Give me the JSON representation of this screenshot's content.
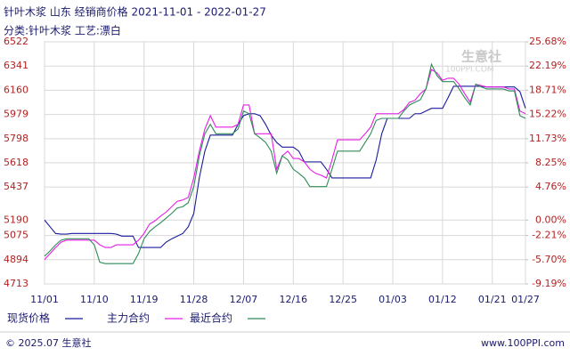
{
  "chart_data": {
    "type": "line",
    "title": "针叶木浆 山东 经销商价格 2021-11-01 - 2022-01-27",
    "subtitle": "分类:针叶木浆 工艺:漂白",
    "watermark": {
      "name": "生意社",
      "site": "100PPI.COM"
    },
    "footer_left": "© 2025.07 生意社",
    "footer_right": "www.100PPI.com",
    "grid": true,
    "legend": "bottom",
    "categories": [
      "11/01",
      null,
      null,
      null,
      null,
      null,
      null,
      null,
      null,
      "11/10",
      null,
      null,
      null,
      null,
      null,
      null,
      null,
      null,
      "11/19",
      null,
      null,
      null,
      null,
      null,
      null,
      null,
      null,
      "11/28",
      null,
      null,
      null,
      null,
      null,
      null,
      null,
      null,
      "12/07",
      null,
      null,
      null,
      null,
      null,
      null,
      null,
      null,
      "12/16",
      null,
      null,
      null,
      null,
      null,
      null,
      null,
      null,
      "12/25",
      null,
      null,
      null,
      null,
      null,
      null,
      null,
      null,
      "01/03",
      null,
      null,
      null,
      null,
      null,
      null,
      null,
      null,
      "01/12",
      null,
      null,
      null,
      null,
      null,
      null,
      null,
      null,
      "01/21",
      null,
      null,
      null,
      null,
      null,
      "01/27"
    ],
    "ylim": [
      4713,
      6522
    ],
    "yticks": [
      6522,
      6341,
      6160,
      5979,
      5798,
      5618,
      5437,
      5190,
      5075,
      4894,
      4713
    ],
    "y2lim": [
      -9.19,
      25.68
    ],
    "y2ticks": [
      {
        "value": 25.68,
        "label": "25.68%"
      },
      {
        "value": 22.19,
        "label": "22.19%"
      },
      {
        "value": 18.71,
        "label": "18.71%"
      },
      {
        "value": 15.22,
        "label": "15.22%"
      },
      {
        "value": 11.73,
        "label": "11.73%"
      },
      {
        "value": 8.25,
        "label": "8.25%"
      },
      {
        "value": 4.76,
        "label": "4.76%"
      },
      {
        "value": 0,
        "label": "0.00%"
      },
      {
        "value": -2.21,
        "label": "-2.21%"
      },
      {
        "value": -5.7,
        "label": "-5.70%"
      },
      {
        "value": -9.19,
        "label": "-9.19%"
      }
    ],
    "series": [
      {
        "name": "现货价格",
        "color": "#1a1a9c",
        "values": [
          5190,
          5140,
          5090,
          5085,
          5085,
          5090,
          5090,
          5090,
          5090,
          5090,
          5090,
          5090,
          5090,
          5085,
          5070,
          5070,
          5070,
          4985,
          4985,
          4985,
          4985,
          4985,
          5025,
          5050,
          5070,
          5090,
          5140,
          5240,
          5505,
          5705,
          5825,
          5825,
          5825,
          5825,
          5825,
          5905,
          5970,
          5985,
          5985,
          5970,
          5905,
          5825,
          5770,
          5735,
          5735,
          5735,
          5705,
          5625,
          5625,
          5625,
          5625,
          5570,
          5505,
          5505,
          5505,
          5505,
          5505,
          5505,
          5505,
          5505,
          5640,
          5835,
          5950,
          5950,
          5950,
          5950,
          5950,
          5985,
          5985,
          6005,
          6025,
          6025,
          6025,
          6105,
          6190,
          6190,
          6190,
          6190,
          6190,
          6190,
          6185,
          6185,
          6185,
          6185,
          6185,
          6185,
          6150,
          6025
        ]
      },
      {
        "name": "主力合约",
        "color": "#e61ee6",
        "values": [
          4895,
          4940,
          4985,
          5025,
          5040,
          5040,
          5040,
          5040,
          5040,
          5040,
          5005,
          4985,
          4985,
          5005,
          5005,
          5005,
          5005,
          5040,
          5090,
          5160,
          5185,
          5220,
          5250,
          5290,
          5330,
          5340,
          5360,
          5505,
          5705,
          5870,
          5970,
          5885,
          5885,
          5885,
          5885,
          5905,
          6050,
          6050,
          5835,
          5835,
          5835,
          5835,
          5570,
          5670,
          5705,
          5650,
          5650,
          5625,
          5570,
          5540,
          5525,
          5505,
          5640,
          5790,
          5790,
          5790,
          5790,
          5790,
          5835,
          5885,
          5985,
          5985,
          5985,
          5985,
          5985,
          6015,
          6070,
          6085,
          6135,
          6170,
          6315,
          6290,
          6235,
          6250,
          6250,
          6205,
          6135,
          6070,
          6205,
          6195,
          6185,
          6185,
          6185,
          6185,
          6170,
          6170,
          6005,
          5985
        ]
      },
      {
        "name": "最近合约",
        "color": "#2e8b57",
        "values": [
          4920,
          4960,
          5005,
          5040,
          5050,
          5050,
          5050,
          5050,
          5050,
          5005,
          4875,
          4865,
          4865,
          4865,
          4865,
          4865,
          4865,
          4940,
          5050,
          5105,
          5140,
          5170,
          5205,
          5240,
          5280,
          5290,
          5320,
          5440,
          5670,
          5835,
          5905,
          5835,
          5835,
          5835,
          5835,
          5870,
          6005,
          5985,
          5835,
          5805,
          5770,
          5705,
          5540,
          5670,
          5640,
          5570,
          5540,
          5505,
          5440,
          5440,
          5440,
          5440,
          5570,
          5705,
          5705,
          5705,
          5705,
          5705,
          5770,
          5835,
          5935,
          5950,
          5950,
          5950,
          5950,
          6005,
          6050,
          6070,
          6090,
          6170,
          6355,
          6270,
          6225,
          6225,
          6225,
          6170,
          6105,
          6050,
          6205,
          6185,
          6170,
          6170,
          6170,
          6170,
          6155,
          6155,
          5970,
          5950
        ]
      }
    ]
  }
}
